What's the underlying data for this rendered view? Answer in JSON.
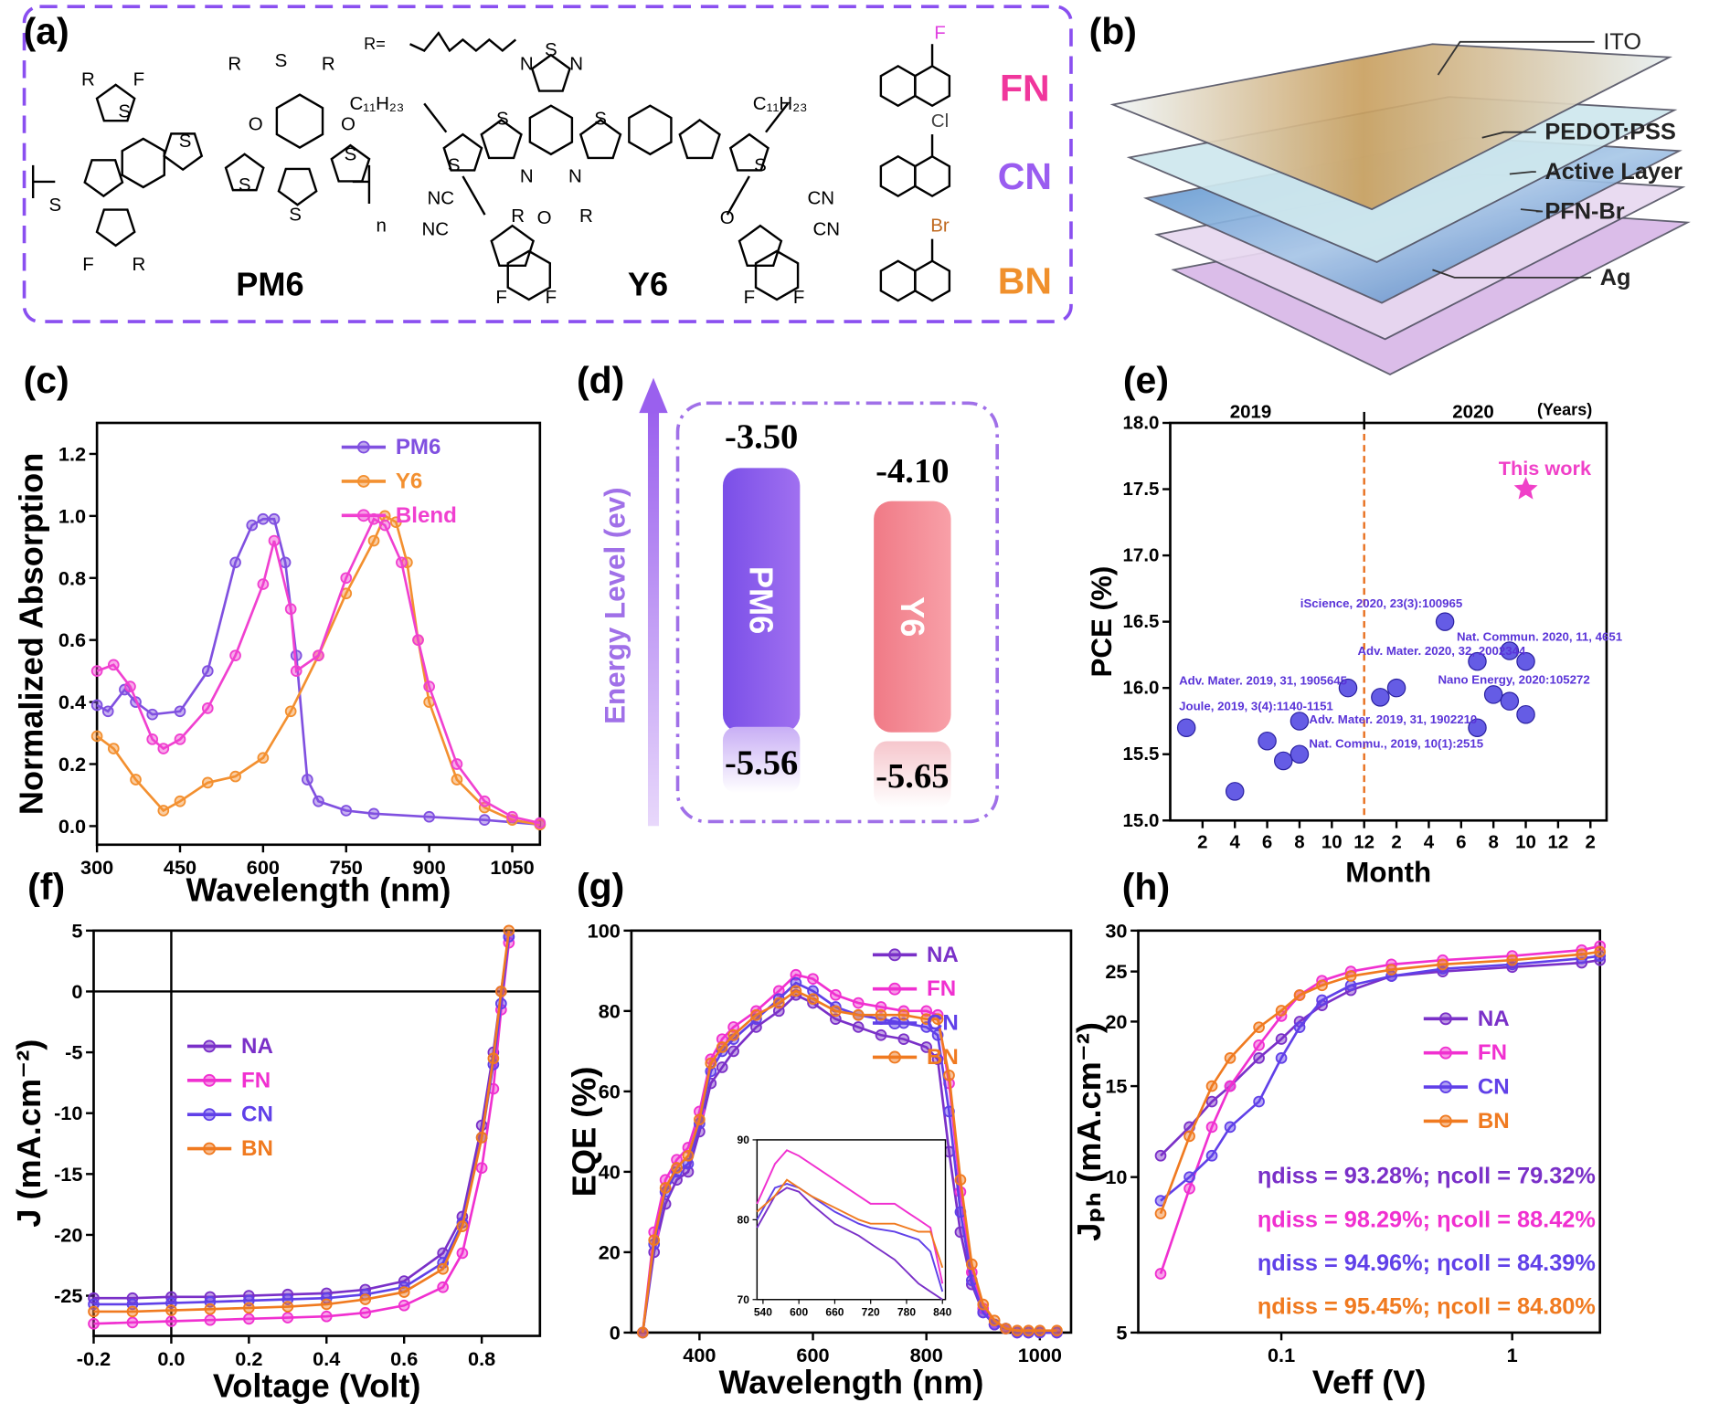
{
  "panel_labels": [
    "(a)",
    "(b)",
    "(c)",
    "(d)",
    "(e)",
    "(f)",
    "(g)",
    "(h)"
  ],
  "structures": {
    "names": [
      "PM6",
      "Y6"
    ],
    "r_group": "R=",
    "atoms": [
      "R",
      "F",
      "S",
      "S",
      "S",
      "S",
      "F",
      "R",
      "R",
      "S",
      "R",
      "O",
      "O",
      "S",
      "S",
      "n",
      "S",
      "N",
      "N",
      "S",
      "S",
      "S",
      "S",
      "N",
      "N",
      "R",
      "R",
      "C₁₁H₂₃",
      "C₁₁H₂₃",
      "NC",
      "NC",
      "O",
      "O",
      "CN",
      "CN",
      "F",
      "F",
      "F",
      "F"
    ],
    "solvents": [
      {
        "label": "FN",
        "atom": "F",
        "color": "#f0369c",
        "atom_color": "#e040e0"
      },
      {
        "label": "CN",
        "atom": "Cl",
        "color": "#9a5cf0",
        "atom_color": "#444444"
      },
      {
        "label": "BN",
        "atom": "Br",
        "color": "#f0902c",
        "atom_color": "#c06a20"
      }
    ]
  },
  "device": {
    "layers": [
      "ITO",
      "PEDOT:PSS",
      "Active Layer",
      "PFN-Br",
      "Ag"
    ]
  },
  "energy_diagram": {
    "axis_label": "Energy Level (ev)",
    "materials": [
      {
        "name": "PM6",
        "lumo": "-3.50",
        "homo": "-5.56"
      },
      {
        "name": "Y6",
        "lumo": "-4.10",
        "homo": "-5.65"
      }
    ]
  },
  "chart_data": [
    {
      "type": "line",
      "xlabel": "Wavelength (nm)",
      "ylabel": "Normalized Absorption",
      "xlim": [
        300,
        1100
      ],
      "ylim": [
        -0.06,
        1.3
      ],
      "xticks": [
        300,
        450,
        600,
        750,
        900,
        1050
      ],
      "yticks": [
        {
          "value": 0,
          "label": "0.0"
        },
        0.2,
        0.4,
        0.6,
        0.8,
        {
          "value": 1,
          "label": "1.0"
        },
        1.2
      ],
      "legend": "upper right",
      "marker": "o",
      "series": [
        {
          "name": "PM6",
          "color": "#8050e0",
          "x": [
            300,
            320,
            350,
            370,
            400,
            450,
            500,
            550,
            580,
            600,
            620,
            640,
            660,
            680,
            700,
            750,
            800,
            900,
            1000,
            1100
          ],
          "values": [
            0.39,
            0.37,
            0.44,
            0.4,
            0.36,
            0.37,
            0.5,
            0.85,
            0.97,
            0.99,
            0.99,
            0.85,
            0.55,
            0.15,
            0.08,
            0.05,
            0.04,
            0.03,
            0.02,
            0.005
          ]
        },
        {
          "name": "Y6",
          "color": "#f39030",
          "x": [
            300,
            330,
            370,
            420,
            450,
            500,
            550,
            600,
            650,
            700,
            750,
            800,
            820,
            840,
            860,
            880,
            900,
            950,
            1000,
            1050,
            1100
          ],
          "values": [
            0.29,
            0.25,
            0.15,
            0.05,
            0.08,
            0.14,
            0.16,
            0.22,
            0.37,
            0.55,
            0.75,
            0.92,
            1.0,
            0.98,
            0.85,
            0.6,
            0.4,
            0.15,
            0.06,
            0.02,
            0.005
          ]
        },
        {
          "name": "Blend",
          "color": "#f040d0",
          "x": [
            300,
            330,
            360,
            400,
            420,
            450,
            500,
            550,
            600,
            620,
            650,
            660,
            700,
            750,
            800,
            820,
            850,
            880,
            900,
            950,
            1000,
            1050,
            1100
          ],
          "values": [
            0.5,
            0.52,
            0.45,
            0.28,
            0.25,
            0.28,
            0.38,
            0.55,
            0.78,
            0.92,
            0.7,
            0.5,
            0.55,
            0.8,
            0.99,
            0.97,
            0.85,
            0.6,
            0.45,
            0.2,
            0.08,
            0.03,
            0.01
          ]
        }
      ]
    },
    {
      "type": "scatter",
      "xlabel": "Month",
      "ylabel": "PCE (%)",
      "xlim": [
        0,
        27
      ],
      "ylim": [
        15,
        18
      ],
      "xticks": [
        2,
        4,
        6,
        8,
        10,
        12,
        {
          "value": 14,
          "label": "2"
        },
        {
          "value": 16,
          "label": "4"
        },
        {
          "value": 18,
          "label": "6"
        },
        {
          "value": 20,
          "label": "8"
        },
        {
          "value": 22,
          "label": "10"
        },
        {
          "value": 24,
          "label": "12"
        },
        {
          "value": 26,
          "label": "2"
        }
      ],
      "yticks": [
        {
          "value": 15,
          "label": "15.0"
        },
        15.5,
        {
          "value": 16,
          "label": "16.0"
        },
        16.5,
        {
          "value": 17,
          "label": "17.0"
        },
        17.5,
        {
          "value": 18,
          "label": "18.0"
        }
      ],
      "top_labels": [
        "2019",
        "2020",
        "(Years)"
      ],
      "refs": [
        {
          "axis": "x",
          "value": 12,
          "color": "#e87020",
          "dashed": true
        }
      ],
      "annotations": [
        "iScience, 2020, 23(3):100965",
        "Nat. Commun. 2020, 11, 4651",
        "Adv. Mater. 2020, 32, 2002344",
        "Adv. Mater. 2019, 31, 1905645",
        "Nano Energy, 2020:105272",
        "Joule, 2019, 3(4):1140-1151",
        "Adv. Mater. 2019, 31, 1902210",
        "Nat. Commu., 2019, 10(1):2515",
        "This work"
      ],
      "annotation_color": "#5a34d8",
      "series": [
        {
          "color": "#4a3fe0",
          "marker": "o",
          "x": [
            1,
            4,
            6,
            7,
            8,
            8,
            11,
            13,
            14,
            17,
            19,
            19,
            20,
            21,
            21,
            22,
            22
          ],
          "values": [
            15.7,
            15.22,
            15.6,
            15.45,
            15.5,
            15.75,
            16.0,
            15.93,
            16.0,
            16.5,
            15.7,
            16.2,
            15.95,
            16.28,
            15.9,
            16.2,
            15.8
          ]
        },
        {
          "name": "This work",
          "color": "#f040c8",
          "marker": "star",
          "x": [
            22
          ],
          "values": [
            17.5
          ]
        }
      ]
    },
    {
      "type": "line",
      "xlabel": "Voltage (Volt)",
      "ylabel": "J (mA.cm⁻²)",
      "xlim": [
        -0.2,
        0.95
      ],
      "ylim": [
        -28.3,
        5
      ],
      "xticks": [
        -0.2,
        {
          "value": 0,
          "label": "0.0"
        },
        0.2,
        0.4,
        0.6,
        0.8
      ],
      "yticks": [
        5,
        0,
        -5,
        -10,
        -15,
        -20,
        -25
      ],
      "refs": [
        {
          "axis": "y",
          "value": 0,
          "color": "#000000",
          "dashed": false
        },
        {
          "axis": "x",
          "value": 0,
          "color": "#000000",
          "dashed": false
        }
      ],
      "legend": "center left",
      "marker": "o",
      "x": [
        -0.2,
        -0.1,
        0,
        0.1,
        0.2,
        0.3,
        0.4,
        0.5,
        0.6,
        0.7,
        0.75,
        0.8,
        0.83,
        0.85,
        0.87
      ],
      "series": [
        {
          "name": "NA",
          "color": "#7a30c8",
          "values": [
            -25.2,
            -25.2,
            -25.1,
            -25.1,
            -25.0,
            -24.9,
            -24.8,
            -24.5,
            -23.8,
            -21.5,
            -18.5,
            -11,
            -5,
            0,
            4.5
          ]
        },
        {
          "name": "FN",
          "color": "#f030d0",
          "values": [
            -27.3,
            -27.2,
            -27.1,
            -27.0,
            -26.9,
            -26.8,
            -26.7,
            -26.4,
            -25.8,
            -24.3,
            -21.5,
            -14.5,
            -8,
            -1.5,
            4
          ]
        },
        {
          "name": "CN",
          "color": "#6040e8",
          "values": [
            -25.7,
            -25.7,
            -25.6,
            -25.5,
            -25.4,
            -25.3,
            -25.2,
            -24.9,
            -24.3,
            -22.3,
            -19,
            -12,
            -6,
            -1,
            4.5
          ]
        },
        {
          "name": "BN",
          "color": "#f07a20",
          "values": [
            -26.3,
            -26.3,
            -26.2,
            -26.1,
            -26.0,
            -25.9,
            -25.7,
            -25.3,
            -24.7,
            -22.8,
            -19.3,
            -12,
            -5.5,
            0,
            5
          ]
        }
      ]
    },
    {
      "type": "line",
      "xlabel": "Wavelength (nm)",
      "ylabel": "EQE (%)",
      "xlim": [
        280,
        1055
      ],
      "ylim": [
        0,
        100
      ],
      "xticks": [
        400,
        600,
        800,
        1000
      ],
      "yticks": [
        0,
        20,
        40,
        60,
        80,
        100
      ],
      "legend": "upper right",
      "marker": "o",
      "x": [
        300,
        320,
        340,
        360,
        380,
        400,
        420,
        440,
        460,
        500,
        540,
        570,
        600,
        640,
        680,
        720,
        760,
        800,
        820,
        840,
        860,
        880,
        900,
        920,
        940,
        960,
        980,
        1000,
        1030
      ],
      "series": [
        {
          "name": "NA",
          "color": "#7a30c8",
          "values": [
            0,
            20,
            32,
            38,
            40,
            50,
            62,
            66,
            70,
            76,
            80,
            84,
            82,
            78,
            76,
            74,
            73,
            71,
            68,
            45,
            25,
            12,
            5,
            2,
            1,
            0,
            0,
            0,
            0
          ]
        },
        {
          "name": "FN",
          "color": "#f030d0",
          "values": [
            0,
            25,
            38,
            43,
            46,
            55,
            68,
            73,
            76,
            80,
            85,
            89,
            88,
            84,
            82,
            81,
            80,
            80,
            79,
            62,
            35,
            15,
            6,
            2,
            1,
            0,
            0,
            0,
            0
          ]
        },
        {
          "name": "CN",
          "color": "#6040e8",
          "values": [
            0,
            22,
            35,
            40,
            42,
            52,
            65,
            70,
            73,
            78,
            83,
            87,
            85,
            81,
            79,
            78,
            77,
            76,
            74,
            55,
            30,
            13,
            5,
            2,
            1,
            0,
            0,
            0,
            0
          ]
        },
        {
          "name": "BN",
          "color": "#f07a20",
          "values": [
            0,
            23,
            36,
            41,
            44,
            53,
            67,
            71,
            74,
            79,
            82,
            85,
            83,
            80,
            79,
            79,
            79,
            78,
            78,
            64,
            38,
            17,
            7,
            3,
            1,
            0.5,
            0.5,
            0.5,
            0.5
          ]
        }
      ]
    },
    {
      "type": "line",
      "xlim": [
        530,
        845
      ],
      "ylim": [
        70,
        90
      ],
      "xticks": [
        540,
        600,
        660,
        720,
        780,
        840
      ],
      "yticks": [
        70,
        80,
        90
      ],
      "x": [
        530,
        560,
        580,
        600,
        620,
        660,
        700,
        720,
        760,
        780,
        800,
        820,
        840
      ],
      "series": [
        {
          "color": "#7a30c8",
          "values": [
            79,
            83,
            84,
            83.5,
            82,
            79.5,
            78,
            77,
            75,
            73.5,
            72,
            71,
            70
          ]
        },
        {
          "color": "#f030d0",
          "values": [
            82,
            87,
            88.7,
            88,
            87,
            85,
            83,
            82,
            82,
            81,
            80,
            79,
            72
          ]
        },
        {
          "color": "#6040e8",
          "values": [
            80,
            84,
            84.5,
            84,
            83,
            81,
            79.5,
            79,
            78.5,
            78,
            77.5,
            76,
            71
          ]
        },
        {
          "color": "#f07a20",
          "values": [
            81,
            83,
            85,
            84,
            83,
            81.5,
            80,
            79.5,
            79.5,
            79,
            78.5,
            78.5,
            74
          ]
        }
      ]
    },
    {
      "type": "line",
      "xlabel": "Veff (V)",
      "ylabel": "Jₚₕ (mA.cm⁻²)",
      "xlog": true,
      "ylog": true,
      "xlim": [
        0.024,
        2.4
      ],
      "ylim": [
        5,
        30
      ],
      "xticks": [
        0.1,
        1
      ],
      "yticks": [
        5,
        10,
        15,
        20,
        25,
        30
      ],
      "legend": "center right",
      "marker": "o",
      "x": [
        0.03,
        0.04,
        0.05,
        0.06,
        0.08,
        0.1,
        0.12,
        0.15,
        0.2,
        0.3,
        0.5,
        1,
        2,
        2.4
      ],
      "series": [
        {
          "name": "NA",
          "color": "#7a30c8",
          "values": [
            11,
            12.5,
            14,
            15,
            17,
            18.5,
            20,
            21.5,
            23,
            24.5,
            25,
            25.5,
            26,
            26.3
          ]
        },
        {
          "name": "FN",
          "color": "#f030d0",
          "values": [
            6.5,
            9.5,
            12.5,
            15,
            18,
            20.5,
            22.5,
            24,
            25,
            25.8,
            26.3,
            26.8,
            27.5,
            28
          ]
        },
        {
          "name": "CN",
          "color": "#6040e8",
          "values": [
            9,
            10,
            11,
            12.5,
            14,
            17,
            19.5,
            22,
            23.5,
            24.5,
            25.3,
            25.8,
            26.5,
            26.8
          ]
        },
        {
          "name": "BN",
          "color": "#f07a20",
          "values": [
            8.5,
            12,
            15,
            17,
            19.5,
            21,
            22.5,
            23.5,
            24.5,
            25.2,
            25.8,
            26.3,
            27,
            27.3
          ]
        }
      ],
      "annotations": [
        {
          "text": "ηdiss = 93.28%;  ηcoll = 79.32%",
          "color": "#7a30c8"
        },
        {
          "text": "ηdiss = 98.29%;  ηcoll = 88.42%",
          "color": "#f030d0"
        },
        {
          "text": "ηdiss = 94.96%;  ηcoll = 84.39%",
          "color": "#6040e8"
        },
        {
          "text": "ηdiss = 95.45%;  ηcoll = 84.80%",
          "color": "#f07a20"
        }
      ]
    }
  ]
}
